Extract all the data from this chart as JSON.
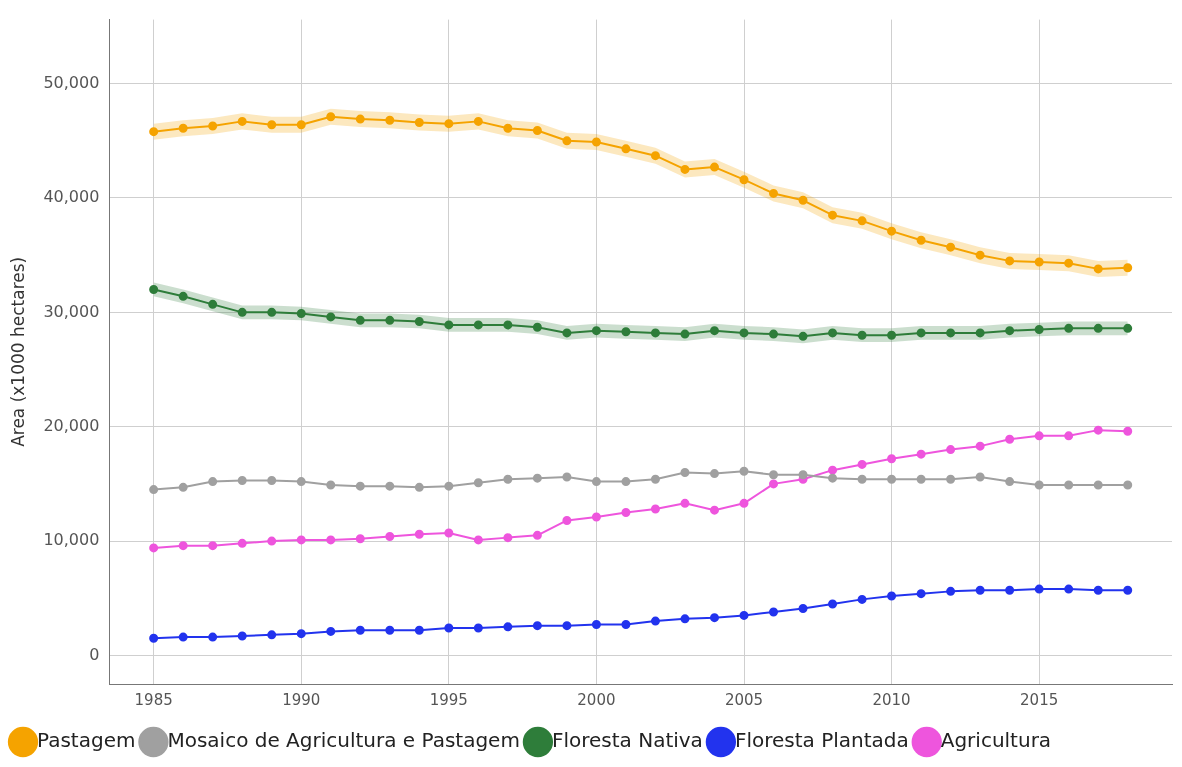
{
  "chart_data": {
    "type": "line",
    "ylabel": "Area (x1000 hectares)",
    "x": [
      1985,
      1986,
      1987,
      1988,
      1989,
      1990,
      1991,
      1992,
      1993,
      1994,
      1995,
      1996,
      1997,
      1998,
      1999,
      2000,
      2001,
      2002,
      2003,
      2004,
      2005,
      2006,
      2007,
      2008,
      2009,
      2010,
      2011,
      2012,
      2013,
      2014,
      2015,
      2016,
      2017,
      2018
    ],
    "xlim": [
      1983.5,
      2019.5
    ],
    "xticks": [
      1985,
      1990,
      1995,
      2000,
      2005,
      2010,
      2015
    ],
    "ylim": [
      -2500,
      55600
    ],
    "yticks": [
      {
        "value": 0,
        "label": "0"
      },
      {
        "value": 10000,
        "label": "10,000"
      },
      {
        "value": 20000,
        "label": "20,000"
      },
      {
        "value": 30000,
        "label": "30,000"
      },
      {
        "value": 40000,
        "label": "40,000"
      },
      {
        "value": 50000,
        "label": "50,000"
      }
    ],
    "grid": true,
    "legend": "bottom",
    "marker": "circle",
    "line_style": "solid",
    "series": [
      {
        "name": "Pastagem",
        "color": "#f5a300",
        "values": [
          45800,
          46100,
          46300,
          46700,
          46400,
          46400,
          47100,
          46900,
          46800,
          46600,
          46500,
          46700,
          46100,
          45900,
          45000,
          44900,
          44300,
          43700,
          42500,
          42700,
          41600,
          40400,
          39800,
          38500,
          38000,
          37100,
          36300,
          35700,
          35000,
          34500,
          34400,
          34300,
          33800,
          33900
        ],
        "lower": [
          45100,
          45400,
          45600,
          46000,
          45700,
          45700,
          46400,
          46200,
          46100,
          45900,
          45800,
          46000,
          45400,
          45200,
          44300,
          44200,
          43600,
          43000,
          41800,
          42000,
          40900,
          39700,
          39100,
          37800,
          37300,
          36400,
          35600,
          35000,
          34300,
          33800,
          33700,
          33600,
          33100,
          33200
        ],
        "upper": [
          46500,
          46800,
          47000,
          47400,
          47100,
          47100,
          47800,
          47600,
          47500,
          47300,
          47200,
          47400,
          46800,
          46600,
          45700,
          45600,
          45000,
          44400,
          43200,
          43400,
          42300,
          41100,
          40500,
          39200,
          38700,
          37800,
          37000,
          36400,
          35700,
          35200,
          35100,
          35000,
          34500,
          34600
        ]
      },
      {
        "name": "Mosaico de Agricultura e Pastagem",
        "color": "#a0a0a0",
        "values": [
          14500,
          14700,
          15200,
          15300,
          15300,
          15200,
          14900,
          14800,
          14800,
          14700,
          14800,
          15100,
          15400,
          15500,
          15600,
          15200,
          15200,
          15400,
          16000,
          15900,
          16100,
          15800,
          15800,
          15500,
          15400,
          15400,
          15400,
          15400,
          15600,
          15200,
          14900,
          14900,
          14900,
          14900
        ]
      },
      {
        "name": "Floresta Nativa",
        "color": "#2e7d3a",
        "values": [
          32000,
          31400,
          30700,
          30000,
          30000,
          29900,
          29600,
          29300,
          29300,
          29200,
          28900,
          28900,
          28900,
          28700,
          28200,
          28400,
          28300,
          28200,
          28100,
          28400,
          28200,
          28100,
          27900,
          28200,
          28000,
          28000,
          28200,
          28200,
          28200,
          28400,
          28500,
          28600,
          28600,
          28600
        ],
        "lower": [
          31400,
          30800,
          30100,
          29400,
          29400,
          29300,
          29000,
          28700,
          28700,
          28600,
          28300,
          28300,
          28300,
          28100,
          27600,
          27800,
          27700,
          27600,
          27500,
          27800,
          27600,
          27500,
          27300,
          27600,
          27400,
          27400,
          27600,
          27600,
          27600,
          27800,
          27900,
          28000,
          28000,
          28000
        ],
        "upper": [
          32600,
          32000,
          31300,
          30600,
          30600,
          30500,
          30200,
          29900,
          29900,
          29800,
          29500,
          29500,
          29500,
          29300,
          28800,
          29000,
          28900,
          28800,
          28700,
          29000,
          28800,
          28700,
          28500,
          28800,
          28600,
          28600,
          28800,
          28800,
          28800,
          29000,
          29100,
          29200,
          29200,
          29200
        ]
      },
      {
        "name": "Floresta Plantada",
        "color": "#2233ee",
        "values": [
          1500,
          1600,
          1600,
          1700,
          1800,
          1900,
          2100,
          2200,
          2200,
          2200,
          2400,
          2400,
          2500,
          2600,
          2600,
          2700,
          2700,
          3000,
          3200,
          3300,
          3500,
          3800,
          4100,
          4500,
          4900,
          5200,
          5400,
          5600,
          5700,
          5700,
          5800,
          5800,
          5700,
          5700
        ]
      },
      {
        "name": "Agricultura",
        "color": "#ee55dd",
        "values": [
          9400,
          9600,
          9600,
          9800,
          10000,
          10100,
          10100,
          10200,
          10400,
          10600,
          10700,
          10100,
          10300,
          10500,
          11800,
          12100,
          12500,
          12800,
          13300,
          12700,
          13300,
          15000,
          15400,
          16200,
          16700,
          17200,
          17600,
          18000,
          18300,
          18900,
          19200,
          19200,
          19700,
          19600
        ]
      }
    ]
  }
}
